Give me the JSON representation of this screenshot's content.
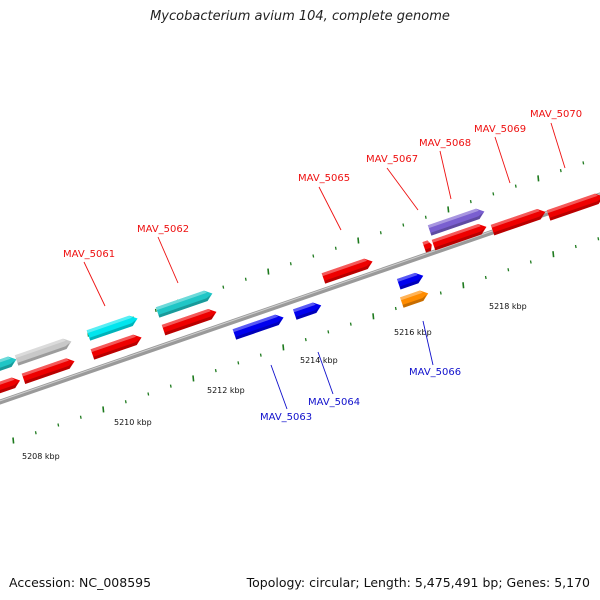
{
  "title": "Mycobacterium avium 104, complete genome",
  "footer": {
    "accession": "Accession: NC_008595",
    "summary": "Topology: circular; Length: 5,475,491 bp; Genes: 5,170"
  },
  "colors": {
    "forward_label": "#ee1111",
    "reverse_label": "#1111cc",
    "backbone": "#888888",
    "tick": "#1d7a1d",
    "red_gene": "#ee0000",
    "blue_gene": "#0000ee",
    "cyan_gene": "#00e5ee",
    "teal_gene": "#20c6c6",
    "gray_gene": "#c8c8c8",
    "purple_gene": "#7a5fd0",
    "orange_gene": "#ff8c00"
  },
  "tick_labels": [
    "5208 kbp",
    "5210 kbp",
    "5212 kbp",
    "5214 kbp",
    "5216 kbp",
    "5218 kbp"
  ],
  "gene_labels": [
    {
      "text": "MAV_5061",
      "strand": "forward"
    },
    {
      "text": "MAV_5062",
      "strand": "forward"
    },
    {
      "text": "MAV_5063",
      "strand": "reverse"
    },
    {
      "text": "MAV_5064",
      "strand": "reverse"
    },
    {
      "text": "MAV_5065",
      "strand": "forward"
    },
    {
      "text": "MAV_5066",
      "strand": "reverse"
    },
    {
      "text": "MAV_5067",
      "strand": "forward"
    },
    {
      "text": "MAV_5068",
      "strand": "forward"
    },
    {
      "text": "MAV_5069",
      "strand": "forward"
    },
    {
      "text": "MAV_5070",
      "strand": "forward"
    }
  ]
}
